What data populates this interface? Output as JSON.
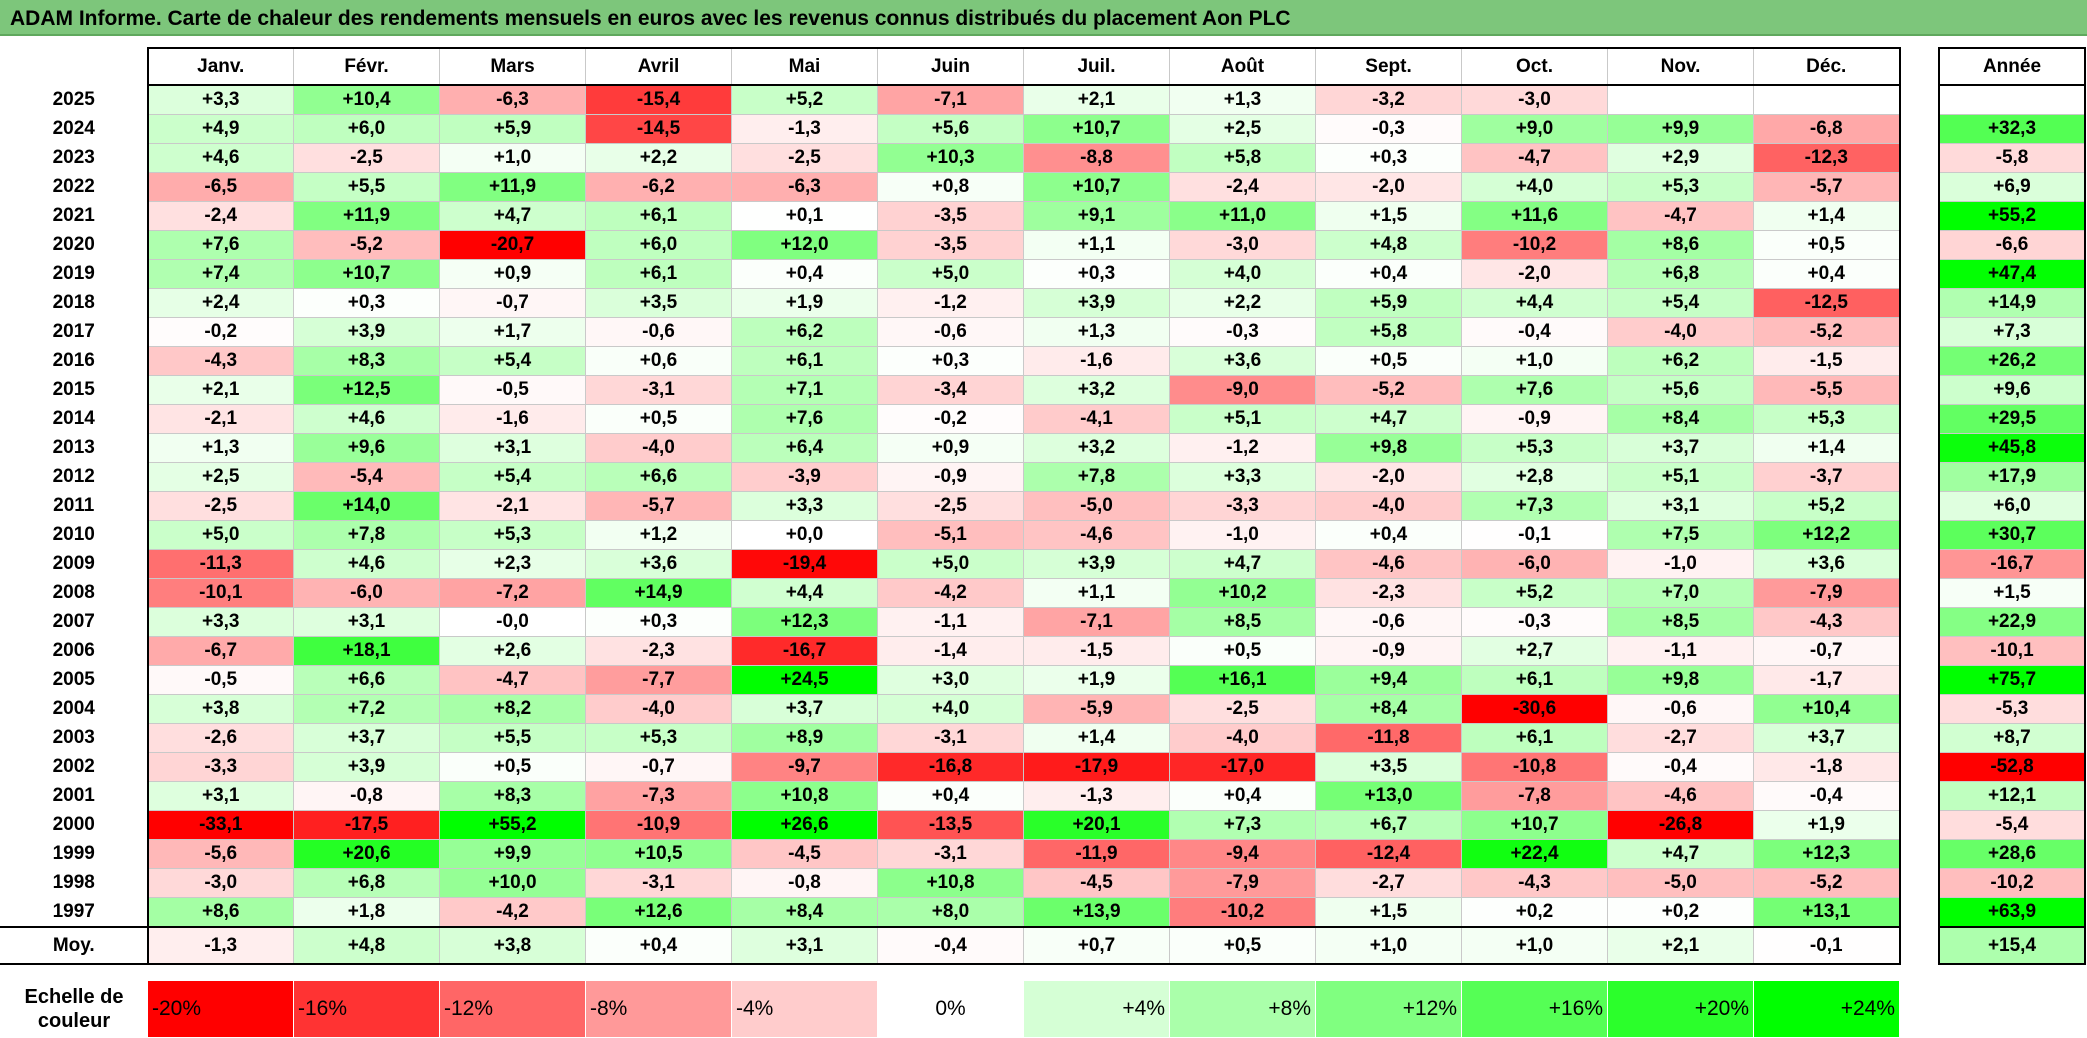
{
  "title": "ADAM Informe. Carte de chaleur des rendements mensuels en euros avec les revenus connus distribués du placement Aon PLC",
  "chart_data": {
    "type": "heatmap",
    "title": "ADAM Informe. Carte de chaleur des rendements mensuels en euros avec les revenus connus distribués du placement Aon PLC",
    "months": [
      "Janv.",
      "Févr.",
      "Mars",
      "Avril",
      "Mai",
      "Juin",
      "Juil.",
      "Août",
      "Sept.",
      "Oct.",
      "Nov.",
      "Déc."
    ],
    "annual_header": "Année",
    "rows": [
      {
        "year": "2025",
        "values": [
          "+3,3",
          "+10,4",
          "-6,3",
          "-15,4",
          "+5,2",
          "-7,1",
          "+2,1",
          "+1,3",
          "-3,2",
          "-3,0",
          "",
          ""
        ],
        "annual": ""
      },
      {
        "year": "2024",
        "values": [
          "+4,9",
          "+6,0",
          "+5,9",
          "-14,5",
          "-1,3",
          "+5,6",
          "+10,7",
          "+2,5",
          "-0,3",
          "+9,0",
          "+9,9",
          "-6,8"
        ],
        "annual": "+32,3"
      },
      {
        "year": "2023",
        "values": [
          "+4,6",
          "-2,5",
          "+1,0",
          "+2,2",
          "-2,5",
          "+10,3",
          "-8,8",
          "+5,8",
          "+0,3",
          "-4,7",
          "+2,9",
          "-12,3"
        ],
        "annual": "-5,8"
      },
      {
        "year": "2022",
        "values": [
          "-6,5",
          "+5,5",
          "+11,9",
          "-6,2",
          "-6,3",
          "+0,8",
          "+10,7",
          "-2,4",
          "-2,0",
          "+4,0",
          "+5,3",
          "-5,7"
        ],
        "annual": "+6,9"
      },
      {
        "year": "2021",
        "values": [
          "-2,4",
          "+11,9",
          "+4,7",
          "+6,1",
          "+0,1",
          "-3,5",
          "+9,1",
          "+11,0",
          "+1,5",
          "+11,6",
          "-4,7",
          "+1,4"
        ],
        "annual": "+55,2"
      },
      {
        "year": "2020",
        "values": [
          "+7,6",
          "-5,2",
          "-20,7",
          "+6,0",
          "+12,0",
          "-3,5",
          "+1,1",
          "-3,0",
          "+4,8",
          "-10,2",
          "+8,6",
          "+0,5"
        ],
        "annual": "-6,6"
      },
      {
        "year": "2019",
        "values": [
          "+7,4",
          "+10,7",
          "+0,9",
          "+6,1",
          "+0,4",
          "+5,0",
          "+0,3",
          "+4,0",
          "+0,4",
          "-2,0",
          "+6,8",
          "+0,4"
        ],
        "annual": "+47,4"
      },
      {
        "year": "2018",
        "values": [
          "+2,4",
          "+0,3",
          "-0,7",
          "+3,5",
          "+1,9",
          "-1,2",
          "+3,9",
          "+2,2",
          "+5,9",
          "+4,4",
          "+5,4",
          "-12,5"
        ],
        "annual": "+14,9"
      },
      {
        "year": "2017",
        "values": [
          "-0,2",
          "+3,9",
          "+1,7",
          "-0,6",
          "+6,2",
          "-0,6",
          "+1,3",
          "-0,3",
          "+5,8",
          "-0,4",
          "-4,0",
          "-5,2"
        ],
        "annual": "+7,3"
      },
      {
        "year": "2016",
        "values": [
          "-4,3",
          "+8,3",
          "+5,4",
          "+0,6",
          "+6,1",
          "+0,3",
          "-1,6",
          "+3,6",
          "+0,5",
          "+1,0",
          "+6,2",
          "-1,5"
        ],
        "annual": "+26,2"
      },
      {
        "year": "2015",
        "values": [
          "+2,1",
          "+12,5",
          "-0,5",
          "-3,1",
          "+7,1",
          "-3,4",
          "+3,2",
          "-9,0",
          "-5,2",
          "+7,6",
          "+5,6",
          "-5,5"
        ],
        "annual": "+9,6"
      },
      {
        "year": "2014",
        "values": [
          "-2,1",
          "+4,6",
          "-1,6",
          "+0,5",
          "+7,6",
          "-0,2",
          "-4,1",
          "+5,1",
          "+4,7",
          "-0,9",
          "+8,4",
          "+5,3"
        ],
        "annual": "+29,5"
      },
      {
        "year": "2013",
        "values": [
          "+1,3",
          "+9,6",
          "+3,1",
          "-4,0",
          "+6,4",
          "+0,9",
          "+3,2",
          "-1,2",
          "+9,8",
          "+5,3",
          "+3,7",
          "+1,4"
        ],
        "annual": "+45,8"
      },
      {
        "year": "2012",
        "values": [
          "+2,5",
          "-5,4",
          "+5,4",
          "+6,6",
          "-3,9",
          "-0,9",
          "+7,8",
          "+3,3",
          "-2,0",
          "+2,8",
          "+5,1",
          "-3,7"
        ],
        "annual": "+17,9"
      },
      {
        "year": "2011",
        "values": [
          "-2,5",
          "+14,0",
          "-2,1",
          "-5,7",
          "+3,3",
          "-2,5",
          "-5,0",
          "-3,3",
          "-4,0",
          "+7,3",
          "+3,1",
          "+5,2"
        ],
        "annual": "+6,0"
      },
      {
        "year": "2010",
        "values": [
          "+5,0",
          "+7,8",
          "+5,3",
          "+1,2",
          "+0,0",
          "-5,1",
          "-4,6",
          "-1,0",
          "+0,4",
          "-0,1",
          "+7,5",
          "+12,2"
        ],
        "annual": "+30,7"
      },
      {
        "year": "2009",
        "values": [
          "-11,3",
          "+4,6",
          "+2,3",
          "+3,6",
          "-19,4",
          "+5,0",
          "+3,9",
          "+4,7",
          "-4,6",
          "-6,0",
          "-1,0",
          "+3,6"
        ],
        "annual": "-16,7"
      },
      {
        "year": "2008",
        "values": [
          "-10,1",
          "-6,0",
          "-7,2",
          "+14,9",
          "+4,4",
          "-4,2",
          "+1,1",
          "+10,2",
          "-2,3",
          "+5,2",
          "+7,0",
          "-7,9"
        ],
        "annual": "+1,5"
      },
      {
        "year": "2007",
        "values": [
          "+3,3",
          "+3,1",
          "-0,0",
          "+0,3",
          "+12,3",
          "-1,1",
          "-7,1",
          "+8,5",
          "-0,6",
          "-0,3",
          "+8,5",
          "-4,3"
        ],
        "annual": "+22,9"
      },
      {
        "year": "2006",
        "values": [
          "-6,7",
          "+18,1",
          "+2,6",
          "-2,3",
          "-16,7",
          "-1,4",
          "-1,5",
          "+0,5",
          "-0,9",
          "+2,7",
          "-1,1",
          "-0,7"
        ],
        "annual": "-10,1"
      },
      {
        "year": "2005",
        "values": [
          "-0,5",
          "+6,6",
          "-4,7",
          "-7,7",
          "+24,5",
          "+3,0",
          "+1,9",
          "+16,1",
          "+9,4",
          "+6,1",
          "+9,8",
          "-1,7"
        ],
        "annual": "+75,7"
      },
      {
        "year": "2004",
        "values": [
          "+3,8",
          "+7,2",
          "+8,2",
          "-4,0",
          "+3,7",
          "+4,0",
          "-5,9",
          "-2,5",
          "+8,4",
          "-30,6",
          "-0,6",
          "+10,4"
        ],
        "annual": "-5,3"
      },
      {
        "year": "2003",
        "values": [
          "-2,6",
          "+3,7",
          "+5,5",
          "+5,3",
          "+8,9",
          "-3,1",
          "+1,4",
          "-4,0",
          "-11,8",
          "+6,1",
          "-2,7",
          "+3,7"
        ],
        "annual": "+8,7"
      },
      {
        "year": "2002",
        "values": [
          "-3,3",
          "+3,9",
          "+0,5",
          "-0,7",
          "-9,7",
          "-16,8",
          "-17,9",
          "-17,0",
          "+3,5",
          "-10,8",
          "-0,4",
          "-1,8"
        ],
        "annual": "-52,8"
      },
      {
        "year": "2001",
        "values": [
          "+3,1",
          "-0,8",
          "+8,3",
          "-7,3",
          "+10,8",
          "+0,4",
          "-1,3",
          "+0,4",
          "+13,0",
          "-7,8",
          "-4,6",
          "-0,4"
        ],
        "annual": "+12,1"
      },
      {
        "year": "2000",
        "values": [
          "-33,1",
          "-17,5",
          "+55,2",
          "-10,9",
          "+26,6",
          "-13,5",
          "+20,1",
          "+7,3",
          "+6,7",
          "+10,7",
          "-26,8",
          "+1,9"
        ],
        "annual": "-5,4"
      },
      {
        "year": "1999",
        "values": [
          "-5,6",
          "+20,6",
          "+9,9",
          "+10,5",
          "-4,5",
          "-3,1",
          "-11,9",
          "-9,4",
          "-12,4",
          "+22,4",
          "+4,7",
          "+12,3"
        ],
        "annual": "+28,6"
      },
      {
        "year": "1998",
        "values": [
          "-3,0",
          "+6,8",
          "+10,0",
          "-3,1",
          "-0,8",
          "+10,8",
          "-4,5",
          "-7,9",
          "-2,7",
          "-4,3",
          "-5,0",
          "-5,2"
        ],
        "annual": "-10,2"
      },
      {
        "year": "1997",
        "values": [
          "+8,6",
          "+1,8",
          "-4,2",
          "+12,6",
          "+8,4",
          "+8,0",
          "+13,9",
          "-10,2",
          "+1,5",
          "+0,2",
          "+0,2",
          "+13,1"
        ],
        "annual": "+63,9"
      }
    ],
    "average": {
      "label": "Moy.",
      "values": [
        "-1,3",
        "+4,8",
        "+3,8",
        "+0,4",
        "+3,1",
        "-0,4",
        "+0,7",
        "+0,5",
        "+1,0",
        "+1,0",
        "+2,1",
        "-0,1"
      ],
      "annual": "+15,4"
    },
    "scale": {
      "label": "Echelle de couleur",
      "steps": [
        "-20%",
        "-16%",
        "-12%",
        "-8%",
        "-4%",
        "0%",
        "+4%",
        "+8%",
        "+12%",
        "+16%",
        "+20%",
        "+24%"
      ],
      "values": [
        -20,
        -16,
        -12,
        -8,
        -4,
        0,
        4,
        8,
        12,
        16,
        20,
        24
      ]
    },
    "colors": {
      "negative_max": "#ff0000",
      "neutral": "#ffffff",
      "positive_max": "#00ff00",
      "title_bar": "#7dc67b"
    }
  }
}
